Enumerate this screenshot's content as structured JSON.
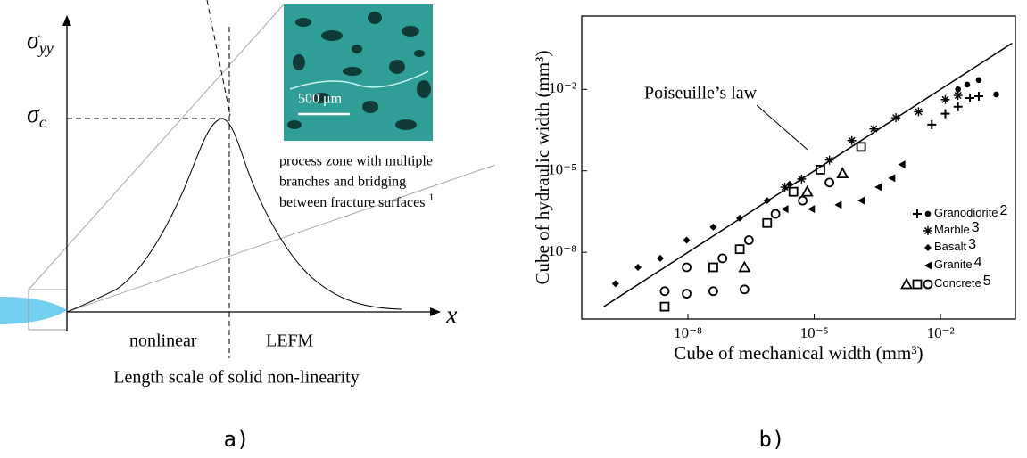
{
  "panel_a": {
    "stress_axis": {
      "symbol": "σ",
      "subscript": "yy"
    },
    "critical_stress": {
      "symbol": "σ",
      "subscript": "c"
    },
    "x_axis": "x",
    "region_left": "nonlinear",
    "region_right": "LEFM",
    "length_scale": "Length scale of solid non-linearity",
    "scale_bar": "500 μm",
    "caption_lines": [
      "process zone with multiple",
      "branches and bridging",
      "between fracture surfaces"
    ],
    "caption_ref": "1",
    "label": "a)"
  },
  "label_b": "b)",
  "chart_data": {
    "type": "scatter",
    "xlabel": "Cube of mechanical width (mm³)",
    "ylabel": "Cube of hydraulic width (mm³)",
    "log_x": true,
    "log_y": true,
    "xlim": [
      3e-11,
      0.6
    ],
    "ylim": [
      3.5e-11,
      5
    ],
    "xticks": [
      {
        "value": 1e-08,
        "label": "10⁻⁸"
      },
      {
        "value": 1e-05,
        "label": "10⁻⁵"
      },
      {
        "value": 0.01,
        "label": "10⁻²"
      }
    ],
    "yticks": [
      {
        "value": 1e-08,
        "label": "10⁻⁸"
      },
      {
        "value": 1e-05,
        "label": "10⁻⁵"
      },
      {
        "value": 0.01,
        "label": "10⁻²"
      }
    ],
    "fit_line": {
      "label": "Poiseuille’s law",
      "x": [
        1e-10,
        0.5
      ],
      "y": [
        1e-10,
        0.5
      ]
    },
    "series": [
      {
        "name": "Granodiorite",
        "ref": "2",
        "color": "#000",
        "markers": [
          "plus",
          "dot"
        ],
        "x": [
          0.0062,
          0.013,
          0.026,
          0.05,
          0.081,
          0.026,
          0.043,
          0.081,
          0.21
        ],
        "values": [
          0.0005,
          0.00126,
          0.0023,
          0.0048,
          0.0056,
          0.01,
          0.015,
          0.022,
          0.0065
        ],
        "marker_index": [
          0,
          0,
          0,
          0,
          0,
          1,
          1,
          1,
          1
        ]
      },
      {
        "name": "Marble",
        "ref": "3",
        "color": "#000",
        "markers": [
          "star"
        ],
        "x": [
          2e-06,
          5e-06,
          2.3e-05,
          7.8e-05,
          0.00026,
          0.00087,
          0.003,
          0.013,
          0.026
        ],
        "values": [
          2.5e-06,
          5e-06,
          2.5e-05,
          0.00013,
          0.00035,
          0.0009,
          0.0015,
          0.0042,
          0.006
        ],
        "marker_index": [
          0,
          0,
          0,
          0,
          0,
          0,
          0,
          0,
          0
        ]
      },
      {
        "name": "Basalt",
        "ref": "3",
        "color": "#000",
        "markers": [
          "diamond"
        ],
        "x": [
          1.9e-10,
          6.5e-10,
          2.2e-09,
          9.3e-09,
          4e-08,
          1.7e-07,
          7.6e-07,
          2.6e-06
        ],
        "values": [
          7e-10,
          2.8e-09,
          6e-09,
          2.8e-08,
          8.5e-08,
          1.8e-07,
          8e-07,
          3.2e-06
        ],
        "marker_index": [
          0,
          0,
          0,
          0,
          0,
          0,
          0,
          0
        ]
      },
      {
        "name": "Granite",
        "ref": "4",
        "color": "#000",
        "markers": [
          "triangle-left"
        ],
        "x": [
          2e-06,
          8.5e-06,
          3.7e-05,
          0.00013,
          0.00033,
          0.00069,
          0.0012
        ],
        "values": [
          3.9e-07,
          3.9e-07,
          5.6e-07,
          8e-07,
          2.5e-06,
          5.4e-06,
          1.7e-05
        ],
        "marker_index": [
          0,
          0,
          0,
          0,
          0,
          0,
          0
        ]
      },
      {
        "name": "Concrete",
        "ref": "5",
        "color": "#000",
        "markers": [
          "triangle",
          "square",
          "circle"
        ],
        "x": [
          2.2e-07,
          6.8e-06,
          4.7e-05,
          2.8e-09,
          4e-08,
          1.7e-07,
          7.6e-07,
          3.2e-06,
          1.4e-05,
          0.00013,
          2.8e-09,
          9.3e-09,
          4e-08,
          2.2e-07,
          9.3e-09,
          6.6e-08,
          2.8e-07,
          1.2e-06,
          5.3e-06,
          2.3e-05
        ],
        "values": [
          2.8e-09,
          1.7e-06,
          8e-06,
          1e-10,
          2.8e-09,
          1.3e-08,
          1.2e-07,
          1.7e-06,
          1.1e-05,
          7.6e-05,
          3.7e-10,
          3e-10,
          3.7e-10,
          4.3e-10,
          2.8e-09,
          6e-09,
          2.8e-08,
          2.6e-07,
          8e-07,
          3.7e-06
        ],
        "marker_index": [
          0,
          0,
          0,
          1,
          1,
          1,
          1,
          1,
          1,
          1,
          2,
          2,
          2,
          2,
          2,
          2,
          2,
          2,
          2,
          2
        ]
      }
    ]
  }
}
